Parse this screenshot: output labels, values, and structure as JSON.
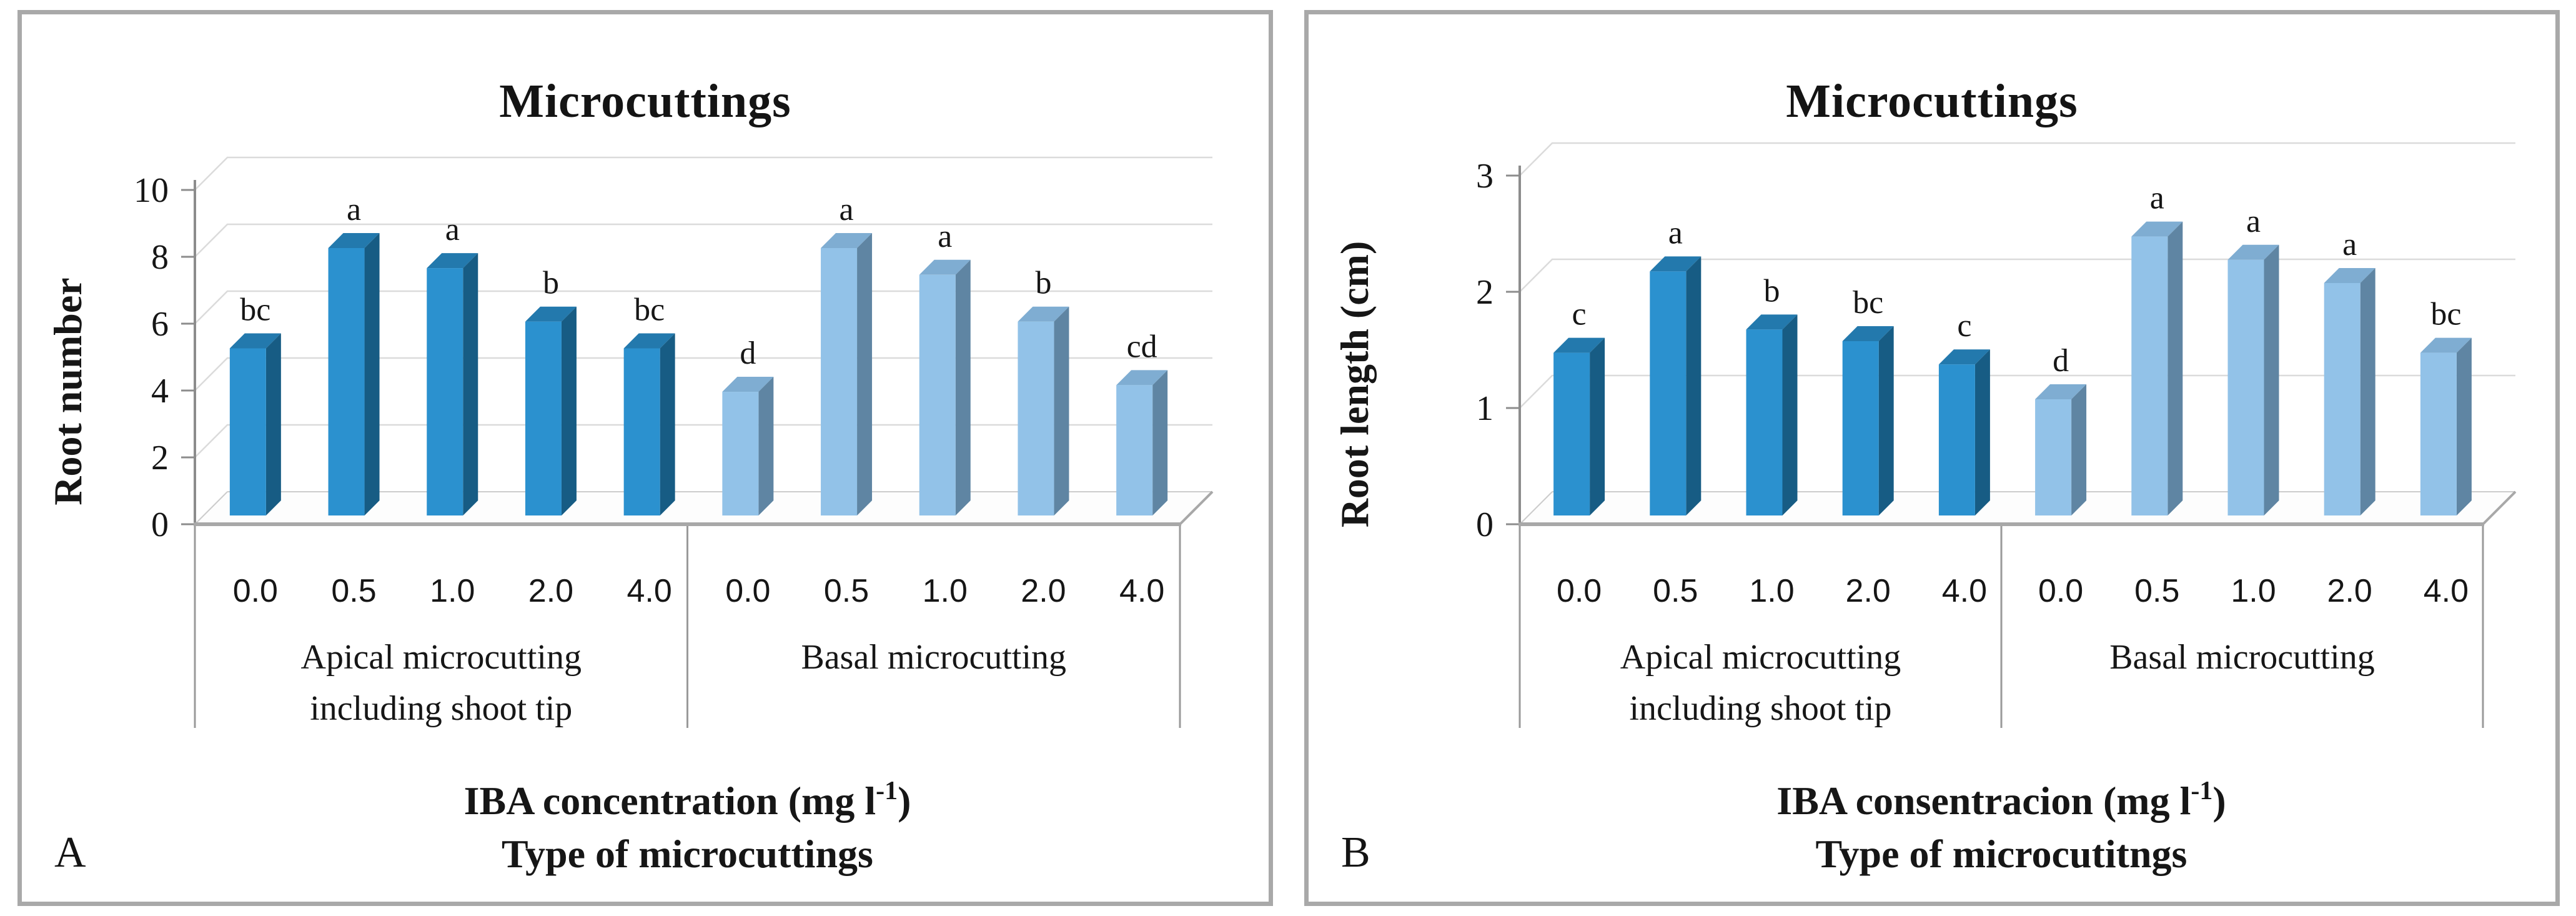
{
  "figure_title": "Microcuttings rooting figure, panels A and B",
  "colors": {
    "dark_front": "#2B91CF",
    "dark_side": "#175C84",
    "dark_top": "#2379AD",
    "light_front": "#92C2E8",
    "light_side": "#5F85A3",
    "light_top": "#7FADD2",
    "grid": "#DBDBDB",
    "axis": "#8C8C8C",
    "floor_edge": "#A8A8A8",
    "floor_back": "#CCCCCC",
    "separator": "#9A9A9A",
    "frame": "#A9A9A9",
    "text": "#161616"
  },
  "chart_data": [
    {
      "type": "bar",
      "panel_label": "A",
      "title": "Microcuttings",
      "ylabel": "Root number",
      "ylim": [
        0,
        10
      ],
      "yticks": [
        0,
        2,
        4,
        6,
        8,
        10
      ],
      "grid": true,
      "legend": "none",
      "categories": [
        "0.0",
        "0.5",
        "1.0",
        "2.0",
        "4.0"
      ],
      "series": [
        {
          "name": "Apical microcutting including shoot tip",
          "group_label_lines": [
            "Apical microcutting",
            "including shoot tip"
          ],
          "color_key": "dark",
          "values": [
            5.0,
            8.0,
            7.4,
            5.8,
            5.0
          ],
          "sig_letters": [
            "bc",
            "a",
            "a",
            "b",
            "bc"
          ]
        },
        {
          "name": "Basal microcutting",
          "group_label_lines": [
            "Basal microcutting"
          ],
          "color_key": "light",
          "values": [
            3.7,
            8.0,
            7.2,
            5.8,
            3.9
          ],
          "sig_letters": [
            "d",
            "a",
            "a",
            "b",
            "cd"
          ]
        }
      ],
      "xlabel_line1_pre": "IBA concentration (mg l",
      "xlabel_line1_sup": "-1",
      "xlabel_line1_post": ")",
      "xlabel_line2": "Type of microcuttings"
    },
    {
      "type": "bar",
      "panel_label": "B",
      "title": "Microcuttings",
      "ylabel": "Root length (cm)",
      "ylim": [
        0,
        3
      ],
      "yticks": [
        0,
        1,
        2,
        3
      ],
      "grid": true,
      "legend": "none",
      "categories": [
        "0.0",
        "0.5",
        "1.0",
        "2.0",
        "4.0"
      ],
      "series": [
        {
          "name": "Apical microcutting including shoot tip",
          "group_label_lines": [
            "Apical microcutting",
            "including shoot tip"
          ],
          "color_key": "dark",
          "values": [
            1.4,
            2.1,
            1.6,
            1.5,
            1.3
          ],
          "sig_letters": [
            "c",
            "a",
            "b",
            "bc",
            "c"
          ]
        },
        {
          "name": "Basal microcutting",
          "group_label_lines": [
            "Basal microcutting"
          ],
          "color_key": "light",
          "values": [
            1.0,
            2.4,
            2.2,
            2.0,
            1.4
          ],
          "sig_letters": [
            "d",
            "a",
            "a",
            "a",
            "bc"
          ]
        }
      ],
      "xlabel_line1_pre": "IBA consentracion (mg l",
      "xlabel_line1_sup": "-1",
      "xlabel_line1_post": ")",
      "xlabel_line2": "Type of microcutitngs"
    }
  ]
}
